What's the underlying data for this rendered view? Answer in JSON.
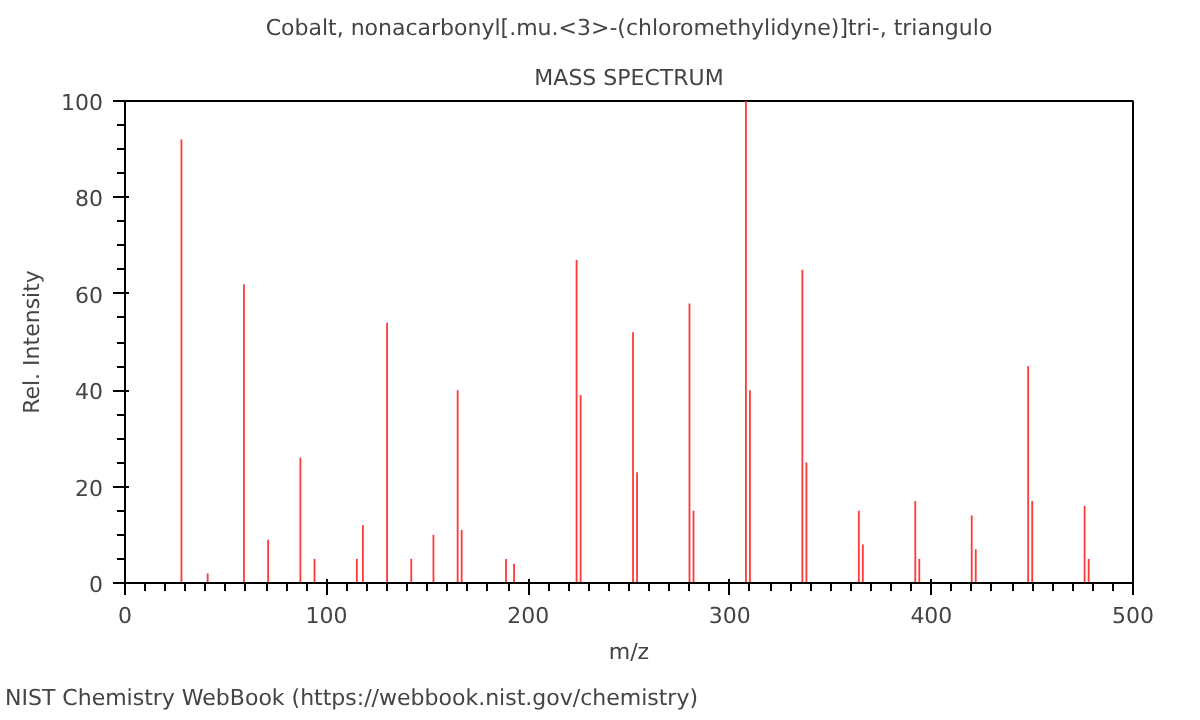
{
  "chart_data": {
    "type": "bar",
    "title": "Cobalt, nonacarbonyl[.mu.<3>-(chloromethylidyne)]tri-, triangulo",
    "subtitle": "MASS SPECTRUM",
    "xlabel": "m/z",
    "ylabel": "Rel. Intensity",
    "x": [
      28,
      41,
      59,
      71,
      87,
      94,
      115,
      118,
      130,
      142,
      153,
      165,
      167,
      189,
      193,
      224,
      226,
      252,
      254,
      280,
      282,
      308,
      310,
      336,
      338,
      364,
      366,
      392,
      394,
      420,
      422,
      448,
      450,
      476,
      478
    ],
    "values": [
      92,
      2,
      62,
      9,
      26,
      5,
      5,
      12,
      54,
      5,
      10,
      40,
      11,
      5,
      4,
      67,
      39,
      52,
      23,
      58,
      15,
      100,
      40,
      65,
      25,
      15,
      8,
      17,
      5,
      14,
      7,
      45,
      17,
      16,
      5
    ],
    "color": "#ff3a3a",
    "xlim": [
      0,
      500
    ],
    "ylim": [
      0,
      100
    ],
    "xticks": [
      0,
      100,
      200,
      300,
      400,
      500
    ],
    "yticks": [
      0,
      20,
      40,
      60,
      80,
      100
    ],
    "grid": false,
    "annotations": [
      "NIST Chemistry WebBook (https://webbook.nist.gov/chemistry)"
    ]
  }
}
